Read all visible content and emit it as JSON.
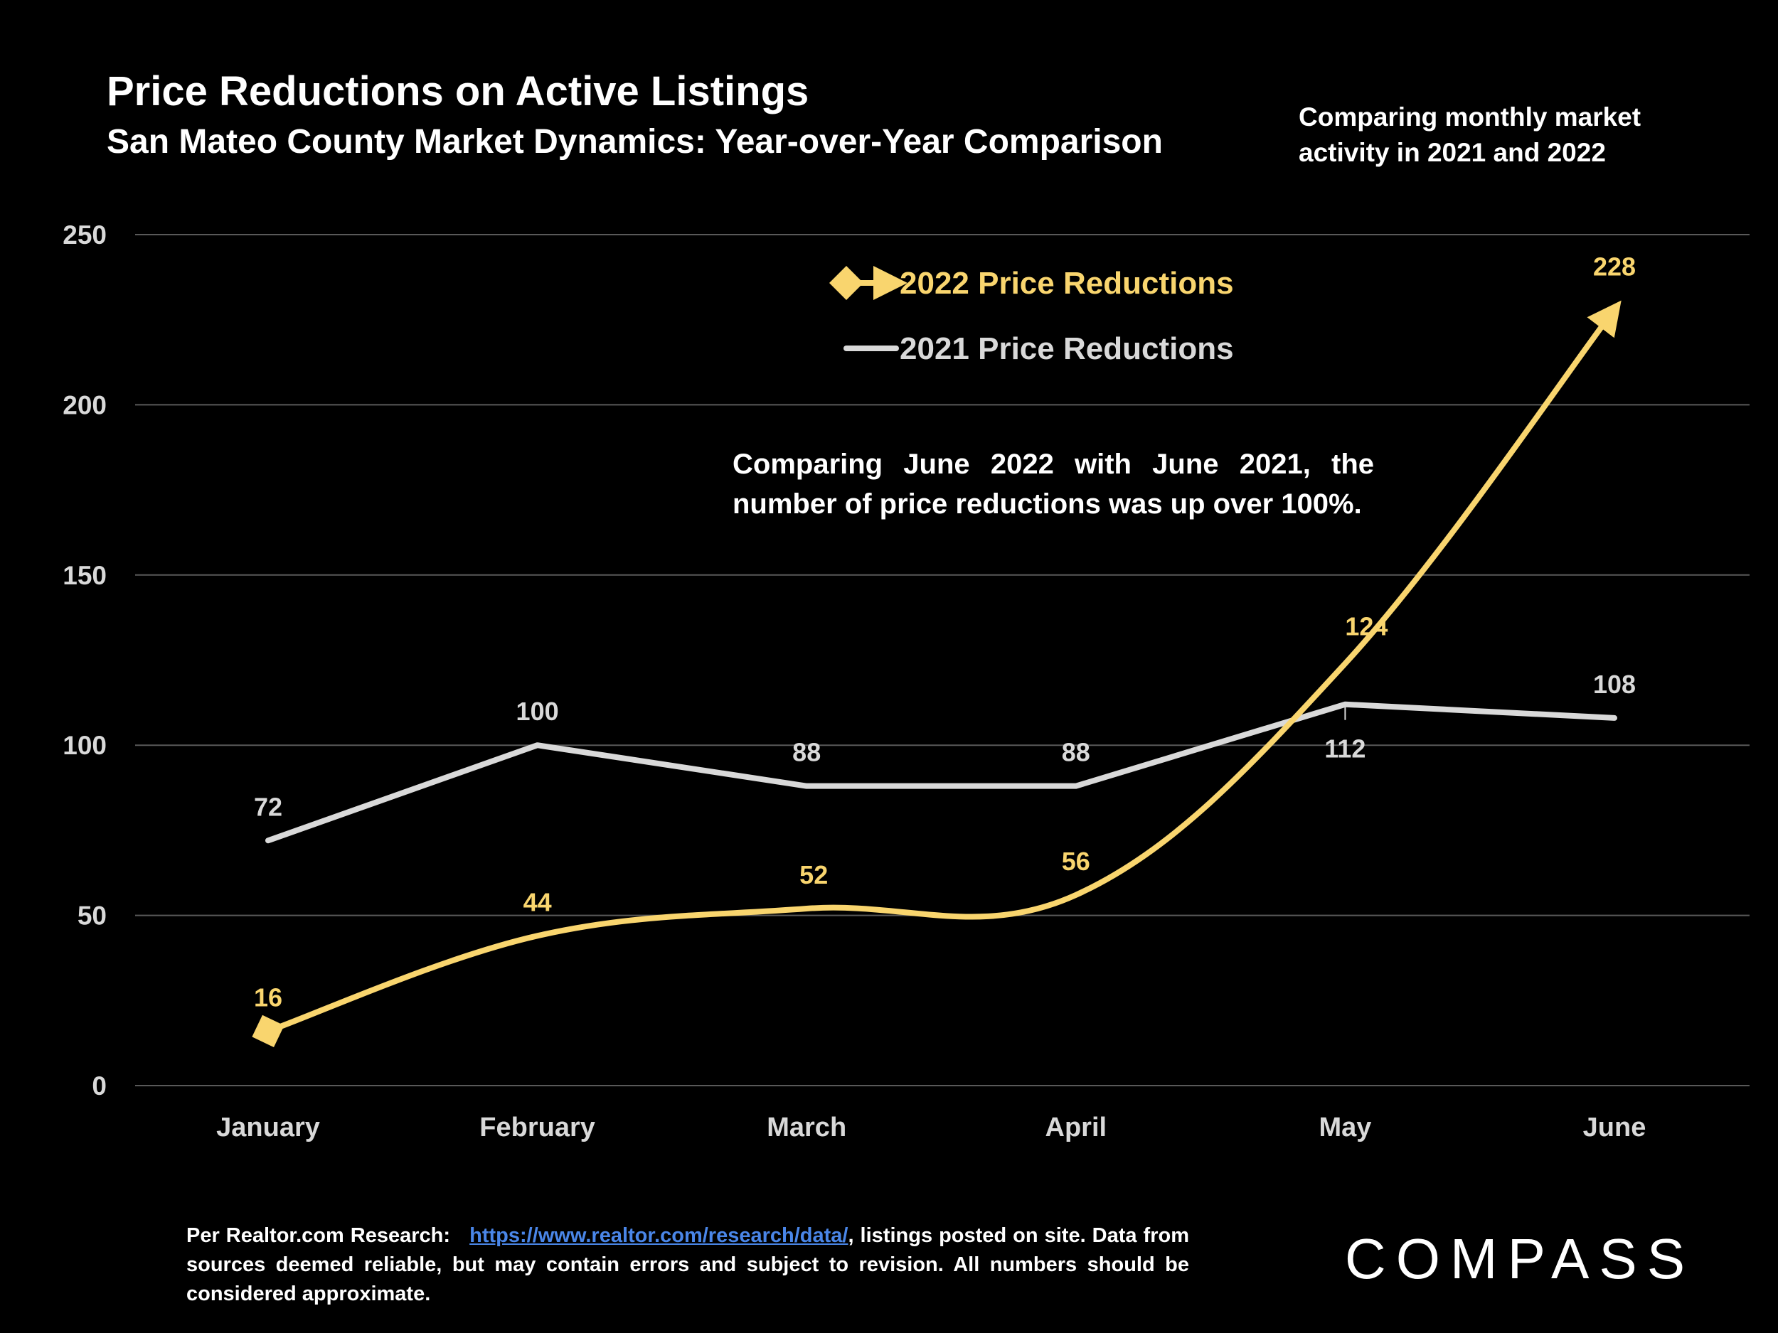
{
  "header": {
    "title": "Price Reductions on Active Listings",
    "subtitle": "San Mateo County Market Dynamics: Year-over-Year Comparison",
    "note": "Comparing monthly market activity in 2021 and 2022"
  },
  "callout": "Comparing June 2022 with June 2021, the number of price reductions was up over 100%.",
  "footer": {
    "prefix": "Per Realtor.com Research:",
    "link_text": "https://www.realtor.com/research/data/",
    "suffix": ", listings posted on site. Data from sources deemed reliable, but may contain errors and subject to revision. All numbers should be considered approximate."
  },
  "logo": {
    "text": "COMPASS"
  },
  "colors": {
    "series_2022": "#f9d56e",
    "series_2021": "#d9d9d9",
    "background": "#000000",
    "grid": "#595959"
  },
  "chart_data": {
    "type": "line",
    "title": "Price Reductions on Active Listings",
    "categories": [
      "January",
      "February",
      "March",
      "April",
      "May",
      "June"
    ],
    "yticks": [
      0,
      50,
      100,
      150,
      200,
      250
    ],
    "ylim": [
      0,
      250
    ],
    "grid": true,
    "legend_position": "top-center",
    "series": [
      {
        "name": "2022 Price Reductions",
        "values": [
          16,
          44,
          52,
          56,
          124,
          228
        ],
        "color": "#f9d56e",
        "smooth": true,
        "markers": "diamond-start-arrow-end"
      },
      {
        "name": "2021 Price Reductions",
        "values": [
          72,
          100,
          88,
          88,
          112,
          108
        ],
        "color": "#d9d9d9",
        "smooth": false
      }
    ]
  }
}
